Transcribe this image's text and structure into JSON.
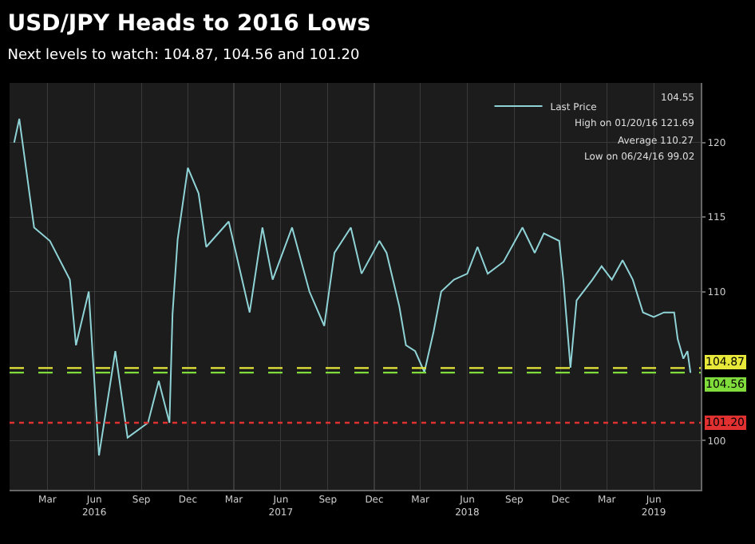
{
  "chart_data": {
    "type": "line",
    "title": "USD/JPY Heads to 2016 Lows",
    "subtitle": "Next levels to watch: 104.87, 104.56 and 101.20",
    "x": [
      "2016-01-10",
      "2016-01-20",
      "2016-02-18",
      "2016-03-20",
      "2016-04-28",
      "2016-05-10",
      "2016-06-04",
      "2016-06-24",
      "2016-07-26",
      "2016-08-19",
      "2016-09-28",
      "2016-10-19",
      "2016-11-09",
      "2016-11-15",
      "2016-11-25",
      "2016-12-15",
      "2017-01-05",
      "2017-01-20",
      "2017-03-05",
      "2017-04-15",
      "2017-05-10",
      "2017-05-30",
      "2017-07-07",
      "2017-08-10",
      "2017-09-08",
      "2017-09-28",
      "2017-10-30",
      "2017-11-20",
      "2017-12-25",
      "2018-01-08",
      "2018-02-02",
      "2018-02-15",
      "2018-03-05",
      "2018-03-23",
      "2018-04-10",
      "2018-04-25",
      "2018-05-20",
      "2018-06-15",
      "2018-07-05",
      "2018-07-25",
      "2018-08-25",
      "2018-10-01",
      "2018-10-25",
      "2018-11-12",
      "2018-12-12",
      "2018-12-20",
      "2019-01-03",
      "2019-01-15",
      "2019-02-15",
      "2019-03-05",
      "2019-03-25",
      "2019-04-15",
      "2019-05-05",
      "2019-05-25",
      "2019-06-15",
      "2019-07-05",
      "2019-07-25",
      "2019-08-01",
      "2019-08-12",
      "2019-08-20",
      "2019-08-26"
    ],
    "series": [
      {
        "name": "Last Price",
        "color": "#8fd3d6",
        "values": [
          120.0,
          121.6,
          114.3,
          113.4,
          110.8,
          106.4,
          110.0,
          99.0,
          106.0,
          100.2,
          101.2,
          104.0,
          101.2,
          108.5,
          113.5,
          118.3,
          116.6,
          113.0,
          114.7,
          108.6,
          114.3,
          110.8,
          114.3,
          110.0,
          107.7,
          112.6,
          114.3,
          111.2,
          113.4,
          112.6,
          109.0,
          106.4,
          106.0,
          104.6,
          107.3,
          110.0,
          110.8,
          111.2,
          113.0,
          111.2,
          112.0,
          114.3,
          112.6,
          113.9,
          113.4,
          110.8,
          104.9,
          109.4,
          110.8,
          111.7,
          110.8,
          112.1,
          110.8,
          108.6,
          108.3,
          108.6,
          108.6,
          106.8,
          105.5,
          106.0,
          104.55
        ]
      }
    ],
    "annotations": [
      "104.55",
      "High on 01/20/16 121.69",
      "Average 110.27",
      "Low on 06/24/16 99.02"
    ],
    "ref_lines": [
      {
        "axis": "y",
        "value": 104.87,
        "label": "104.87",
        "color": "#e8e83a",
        "line_style": "dashed"
      },
      {
        "axis": "y",
        "value": 104.56,
        "label": "104.56",
        "color": "#7fdc3a",
        "line_style": "dashed"
      },
      {
        "axis": "y",
        "value": 101.2,
        "label": "101.20",
        "color": "#e03030",
        "line_style": "dotted"
      }
    ],
    "xlim": [
      "2016-01-01",
      "2019-09-15"
    ],
    "xticks": [
      {
        "value": "2016-03-15",
        "label": "Mar"
      },
      {
        "value": "2016-06-15",
        "label": "Jun\n2016"
      },
      {
        "value": "2016-09-15",
        "label": "Sep"
      },
      {
        "value": "2016-12-15",
        "label": "Dec"
      },
      {
        "value": "2017-03-15",
        "label": "Mar"
      },
      {
        "value": "2017-06-15",
        "label": "Jun\n2017"
      },
      {
        "value": "2017-09-15",
        "label": "Sep"
      },
      {
        "value": "2017-12-15",
        "label": "Dec"
      },
      {
        "value": "2018-03-15",
        "label": "Mar"
      },
      {
        "value": "2018-06-15",
        "label": "Jun\n2018"
      },
      {
        "value": "2018-09-15",
        "label": "Sep"
      },
      {
        "value": "2018-12-15",
        "label": "Dec"
      },
      {
        "value": "2019-03-15",
        "label": "Mar"
      },
      {
        "value": "2019-06-15",
        "label": "Jun\n2019"
      }
    ],
    "ylim": [
      96.7,
      124
    ],
    "yticks": [
      100,
      110,
      115,
      120
    ],
    "grid": true,
    "legend": "top right"
  }
}
